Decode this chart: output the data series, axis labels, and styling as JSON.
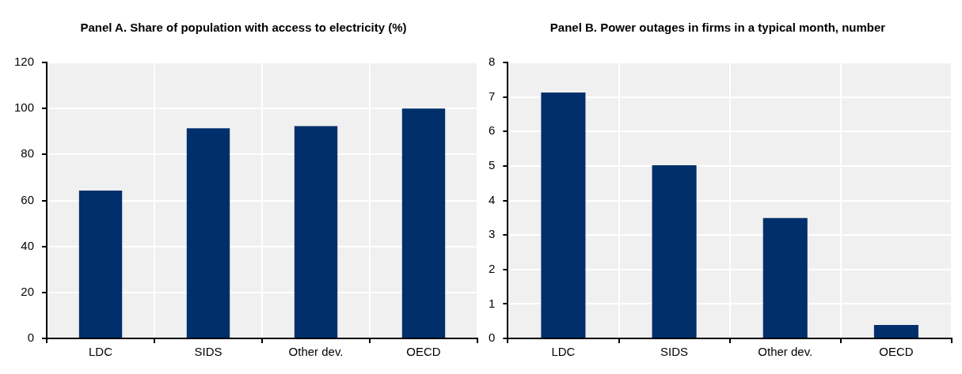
{
  "chart_data": [
    {
      "type": "bar",
      "title": "Panel A. Share of population with access to electricity (%)",
      "categories": [
        "LDC",
        "SIDS",
        "Other dev.",
        "OECD"
      ],
      "values": [
        64.3,
        91.4,
        92.3,
        100
      ],
      "color": "#002f6c",
      "ylim": [
        0,
        120
      ],
      "yticks": [
        0,
        20,
        40,
        60,
        80,
        100,
        120
      ],
      "grid": true,
      "legend": false
    },
    {
      "type": "bar",
      "title": "Panel B. Power outages in firms in a typical month, number",
      "categories": [
        "LDC",
        "SIDS",
        "Other dev.",
        "OECD"
      ],
      "values": [
        7.13,
        5.02,
        3.49,
        0.39
      ],
      "color": "#002f6c",
      "ylim": [
        0,
        8
      ],
      "yticks": [
        0,
        1,
        2,
        3,
        4,
        5,
        6,
        7,
        8
      ],
      "grid": true,
      "legend": false
    }
  ]
}
